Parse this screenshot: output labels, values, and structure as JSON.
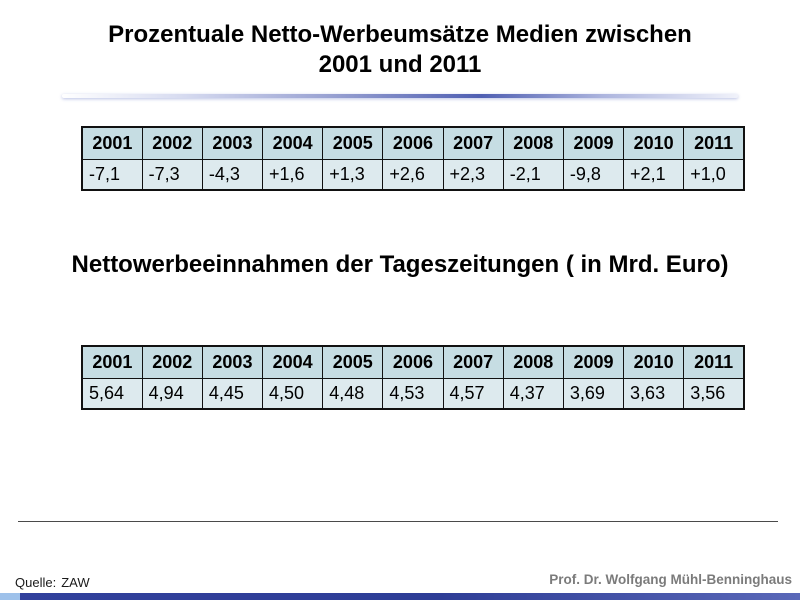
{
  "slide": {
    "title_line1": "Prozentuale Netto-Werbeumsätze Medien zwischen",
    "title_line2": "2001 und 2011",
    "section2_title": "Nettowerbeeinnahmen der Tageszeitungen ( in Mrd. Euro)",
    "footer": {
      "source_label": "Quelle:",
      "source_value": "ZAW",
      "author": "Prof. Dr. Wolfgang Mühl-Benninghaus"
    }
  },
  "theme": {
    "accent": "#4f5fb2",
    "accent_light": "#9ec1ea",
    "table_header_bg": "#c6dde3",
    "table_row_bg": "#ddeaee",
    "author_gray": "#7b7b7b"
  },
  "chart_data": [
    {
      "type": "table",
      "title": "Prozentuale Netto-Werbeumsätze Medien zwischen 2001 und 2011",
      "unit": "percent change",
      "columns": [
        "2001",
        "2002",
        "2003",
        "2004",
        "2005",
        "2006",
        "2007",
        "2008",
        "2009",
        "2010",
        "2011"
      ],
      "values": [
        "-7,1",
        "-7,3",
        "-4,3",
        "+1,6",
        "+1,3",
        "+2,6",
        "+2,3",
        "-2,1",
        "-9,8",
        "+2,1",
        "+1,0"
      ]
    },
    {
      "type": "table",
      "title": "Nettowerbeeinnahmen der Tageszeitungen ( in Mrd. Euro)",
      "unit": "Mrd. Euro",
      "columns": [
        "2001",
        "2002",
        "2003",
        "2004",
        "2005",
        "2006",
        "2007",
        "2008",
        "2009",
        "2010",
        "2011"
      ],
      "values": [
        "5,64",
        "4,94",
        "4,45",
        "4,50",
        "4,48",
        "4,53",
        "4,57",
        "4,37",
        "3,69",
        "3,63",
        "3,56"
      ]
    }
  ]
}
